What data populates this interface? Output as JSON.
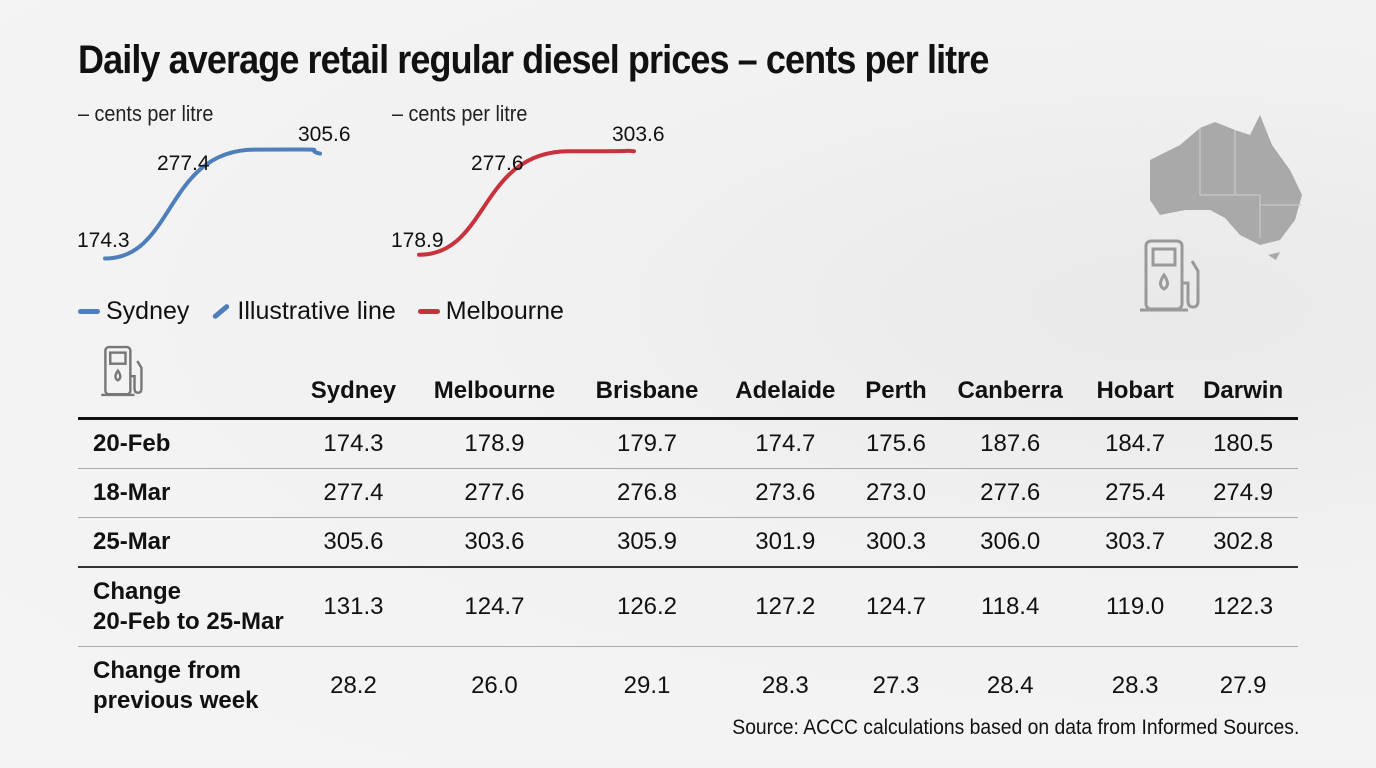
{
  "title": "Daily average retail regular diesel prices – cents per litre",
  "chart_data": [
    {
      "type": "line",
      "unit_label": "– cents per litre",
      "series": [
        {
          "name": "Sydney",
          "values": [
            174.3,
            277.4,
            305.6
          ],
          "color": "#4f7fba"
        }
      ]
    },
    {
      "type": "line",
      "unit_label": "– cents per litre",
      "series": [
        {
          "name": "Melbourne",
          "values": [
            178.9,
            277.6,
            303.6
          ],
          "color": "#c8323c"
        }
      ]
    }
  ],
  "legend": [
    "Sydney",
    "Illustrative line",
    "Melbourne"
  ],
  "table": {
    "columns": [
      "Sydney",
      "Melbourne",
      "Brisbane",
      "Adelaide",
      "Perth",
      "Canberra",
      "Hobart",
      "Darwin"
    ],
    "rows": [
      {
        "label": "20-Feb",
        "values": [
          "174.3",
          "178.9",
          "179.7",
          "174.7",
          "175.6",
          "187.6",
          "184.7",
          "180.5"
        ]
      },
      {
        "label": "18-Mar",
        "values": [
          "277.4",
          "277.6",
          "276.8",
          "273.6",
          "273.0",
          "277.6",
          "275.4",
          "274.9"
        ]
      },
      {
        "label": "25-Mar",
        "values": [
          "305.6",
          "303.6",
          "305.9",
          "301.9",
          "300.3",
          "306.0",
          "303.7",
          "302.8"
        ]
      },
      {
        "label": "Change\n20-Feb to 25-Mar",
        "values": [
          "131.3",
          "124.7",
          "126.2",
          "127.2",
          "124.7",
          "118.4",
          "119.0",
          "122.3"
        ]
      },
      {
        "label": "Change from\nprevious week",
        "values": [
          "28.2",
          "26.0",
          "29.1",
          "28.3",
          "27.3",
          "28.4",
          "28.3",
          "27.9"
        ]
      }
    ]
  },
  "source": "Source: ACCC calculations based on data from Informed Sources.",
  "icons": [
    "fuel-pump-icon",
    "australia-map-icon"
  ]
}
